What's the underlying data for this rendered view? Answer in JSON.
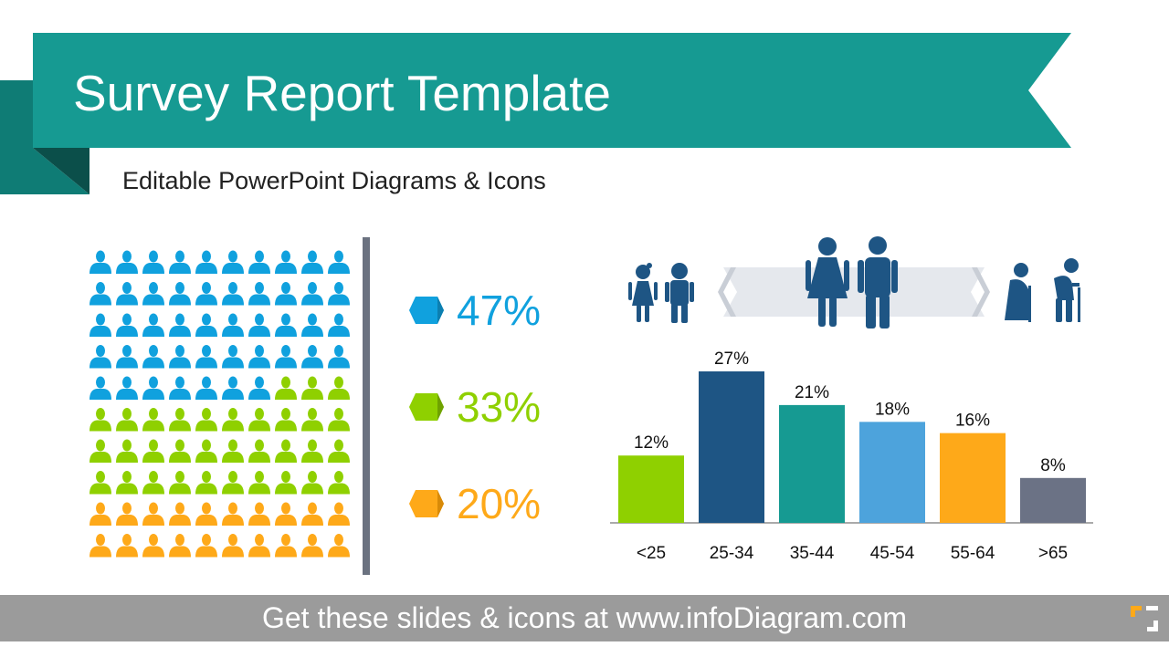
{
  "header": {
    "title": "Survey Report Template",
    "subtitle": "Editable PowerPoint Diagrams & Icons",
    "banner_color": "#169a92"
  },
  "people_grid": {
    "columns": 10,
    "rows": 10,
    "groups": [
      {
        "name": "blue",
        "percent": 47,
        "color": "#10a1de"
      },
      {
        "name": "green",
        "percent": 33,
        "color": "#8fd000"
      },
      {
        "name": "orange",
        "percent": 20,
        "color": "#fea919"
      }
    ]
  },
  "stats": [
    {
      "label": "47%",
      "color": "#10a1de",
      "icon": "hexagon-icon"
    },
    {
      "label": "33%",
      "color": "#8fd000",
      "icon": "hexagon-icon"
    },
    {
      "label": "20%",
      "color": "#fea919",
      "icon": "hexagon-icon"
    }
  ],
  "age_icons": [
    "children-icon",
    "adults-icon",
    "seniors-icon",
    "age-range-arrow-icon"
  ],
  "chart_data": {
    "type": "bar",
    "categories": [
      "<25",
      "25-34",
      "35-44",
      "45-54",
      "55-64",
      ">65"
    ],
    "values": [
      12,
      27,
      21,
      18,
      16,
      8
    ],
    "value_labels": [
      "12%",
      "27%",
      "21%",
      "18%",
      "16%",
      "8%"
    ],
    "colors": [
      "#8fd000",
      "#1e5584",
      "#169a92",
      "#4da3dc",
      "#fea919",
      "#6b7285"
    ],
    "ylim": [
      0,
      27
    ],
    "grid": false,
    "title": "",
    "xlabel": "",
    "ylabel": ""
  },
  "footer": {
    "text": "Get these slides & icons at www.infoDiagram.com",
    "logo": "infodiagram-logo-icon"
  }
}
